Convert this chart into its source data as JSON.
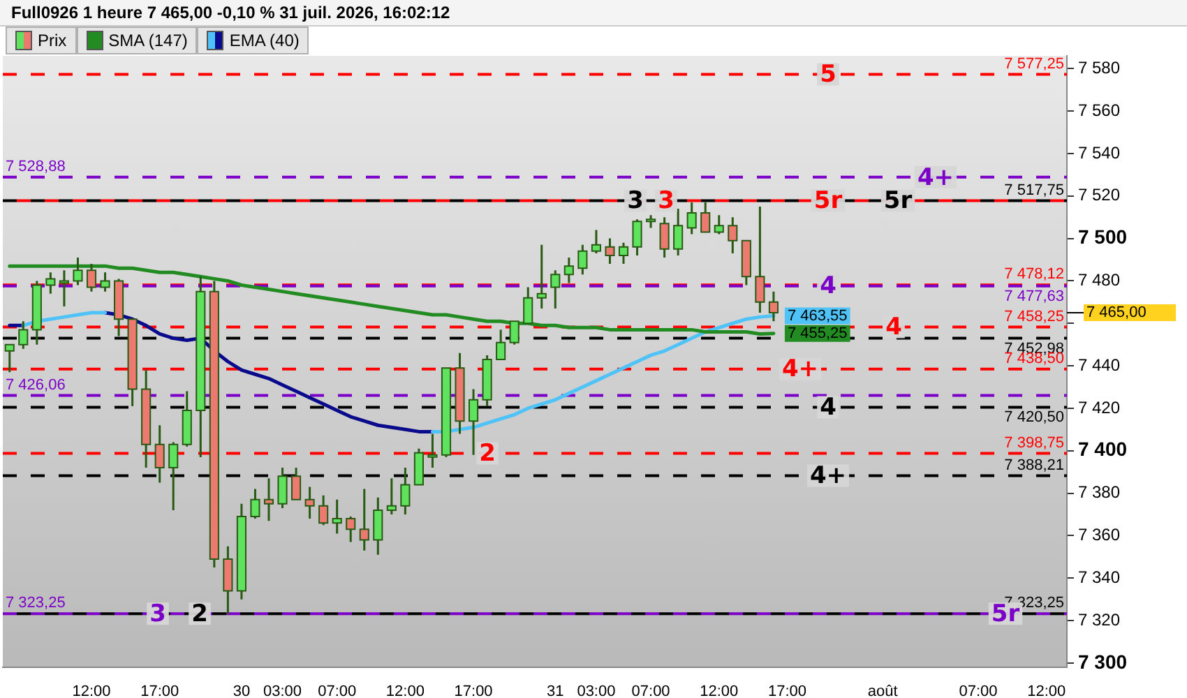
{
  "chart_data": {
    "type": "candlestick",
    "title": "Full0926 1 heure 7 465,00 -0,10 % 31 juil. 2026, 16:02:12",
    "categories": [
      null,
      null,
      null,
      null,
      null,
      null,
      "12:00",
      null,
      null,
      null,
      null,
      "17:00",
      null,
      null,
      null,
      null,
      null,
      "30",
      null,
      null,
      "03:00",
      null,
      null,
      null,
      "07:00",
      null,
      null,
      null,
      null,
      "12:00",
      null,
      null,
      null,
      null,
      "17:00",
      null,
      null,
      null,
      null,
      null,
      "31",
      null,
      null,
      "03:00",
      null,
      null,
      null,
      "07:00",
      null,
      null,
      null,
      null,
      "12:00",
      null,
      null,
      null,
      null,
      "17:00",
      null,
      null,
      null,
      null,
      null,
      null,
      "août",
      null,
      null,
      null,
      null,
      null,
      null,
      "07:00",
      null,
      null,
      null,
      null,
      "12:00",
      null
    ],
    "legend": "top left",
    "grid": false,
    "marker": "none",
    "line_style": "solid",
    "ylim": [
      7298,
      7586
    ],
    "yticks": [
      {
        "value": 7300,
        "label": "7 300"
      },
      {
        "value": 7320,
        "label": "7 320"
      },
      {
        "value": 7340,
        "label": "7 340"
      },
      {
        "value": 7360,
        "label": "7 360"
      },
      {
        "value": 7380,
        "label": "7 380"
      },
      {
        "value": 7400,
        "label": "7 400"
      },
      {
        "value": 7420,
        "label": "7 420"
      },
      {
        "value": 7440,
        "label": "7 440"
      },
      {
        "value": 7460,
        "label": null
      },
      {
        "value": 7480,
        "label": "7 480"
      },
      {
        "value": 7500,
        "label": "7 500"
      },
      {
        "value": 7520,
        "label": "7 520"
      },
      {
        "value": 7540,
        "label": "7 540"
      },
      {
        "value": 7560,
        "label": "7 560"
      },
      {
        "value": 7580,
        "label": "7 580"
      }
    ],
    "ref_lines": [
      {
        "axis": "y",
        "value": 7577.25,
        "label": "7 577,25",
        "color": "#ff0000",
        "line_style": "dashed"
      },
      {
        "axis": "y",
        "value": 7528.88,
        "label": "7 528,88",
        "color": "#7b00c8",
        "line_style": "dashed"
      },
      {
        "axis": "y",
        "value": 7517.75,
        "label": "7 517,75",
        "color": "#000000",
        "line_style": "dashed"
      },
      {
        "axis": "y",
        "value": 7517.75,
        "color": "#ff0000",
        "line_style": "dashed"
      },
      {
        "axis": "y",
        "value": 7478.12,
        "label": "7 478,12",
        "color": "#ff0000",
        "line_style": "dashed"
      },
      {
        "axis": "y",
        "value": 7477.63,
        "label": "7 477,63",
        "color": "#7b00c8",
        "line_style": "dashed"
      },
      {
        "axis": "y",
        "value": 7458.25,
        "label": "7 458,25",
        "color": "#ff0000",
        "line_style": "dashed"
      },
      {
        "axis": "y",
        "value": 7452.98,
        "label": "7 452,98",
        "color": "#000000",
        "line_style": "dashed"
      },
      {
        "axis": "y",
        "value": 7438.5,
        "label": "7 438,50",
        "color": "#ff0000",
        "line_style": "dashed"
      },
      {
        "axis": "y",
        "value": 7426.06,
        "label": "7 426,06",
        "color": "#7b00c8",
        "line_style": "dashed"
      },
      {
        "axis": "y",
        "value": 7420.5,
        "label": "7 420,50",
        "color": "#000000",
        "line_style": "dashed"
      },
      {
        "axis": "y",
        "value": 7398.75,
        "label": "7 398,75",
        "color": "#ff0000",
        "line_style": "dashed"
      },
      {
        "axis": "y",
        "value": 7388.21,
        "label": "7 388,21",
        "color": "#000000",
        "line_style": "dashed"
      },
      {
        "axis": "y",
        "value": 7323.25,
        "label": "7 323,25",
        "color": "#7b00c8",
        "line_style": "dashed"
      },
      {
        "axis": "y",
        "value": 7323.25,
        "label": "7 323,25",
        "color": "#000000",
        "line_style": "dashed"
      }
    ],
    "annotations": [
      {
        "text": "5",
        "y": 7577.25
      },
      {
        "text": "4+",
        "y": 7528.88
      },
      {
        "text": "3",
        "y": 7517.75
      },
      {
        "text": "3",
        "y": 7517.75
      },
      {
        "text": "5r",
        "y": 7517.75
      },
      {
        "text": "5r",
        "y": 7517.75
      },
      {
        "text": "4",
        "y": 7477.63
      },
      {
        "text": "4",
        "y": 7458.25
      },
      {
        "text": "4+",
        "y": 7438.5
      },
      {
        "text": "4",
        "y": 7420.5
      },
      {
        "text": "2",
        "y": 7398.75
      },
      {
        "text": "4+",
        "y": 7388.21
      },
      {
        "text": "3",
        "y": 7323.25
      },
      {
        "text": "2",
        "y": 7323.25
      },
      {
        "text": "5r",
        "y": 7323.25
      }
    ],
    "series": [
      {
        "name": "Prix",
        "ohlc": [
          [
            7447,
            7450,
            7437,
            7450
          ],
          [
            7450,
            7461,
            7448,
            7457
          ],
          [
            7457,
            7480,
            7450,
            7478
          ],
          [
            7478,
            7484,
            7474,
            7481
          ],
          [
            7480,
            7485,
            7468,
            7480
          ],
          [
            7480,
            7491,
            7478,
            7485
          ],
          [
            7485,
            7488,
            7475,
            7477
          ],
          [
            7477,
            7484,
            7475,
            7480
          ],
          [
            7480,
            7481,
            7454,
            7462
          ],
          [
            7462,
            7462,
            7421,
            7429
          ],
          [
            7429,
            7438,
            7392,
            7403
          ],
          [
            7403,
            7412,
            7385,
            7392
          ],
          [
            7392,
            7404,
            7372,
            7403
          ],
          [
            7403,
            7428,
            7402,
            7419
          ],
          [
            7419,
            7482,
            7397,
            7475
          ],
          [
            7475,
            7480,
            7345,
            7349
          ],
          [
            7349,
            7355,
            7323,
            7334
          ],
          [
            7334,
            7375,
            7330,
            7369
          ],
          [
            7369,
            7382,
            7368,
            7377
          ],
          [
            7377,
            7387,
            7367,
            7375
          ],
          [
            7375,
            7392,
            7373,
            7388
          ],
          [
            7388,
            7392,
            7377,
            7377
          ],
          [
            7377,
            7383,
            7368,
            7374
          ],
          [
            7374,
            7379,
            7365,
            7366
          ],
          [
            7366,
            7377,
            7361,
            7368
          ],
          [
            7368,
            7369,
            7357,
            7363
          ],
          [
            7363,
            7382,
            7353,
            7358
          ],
          [
            7358,
            7378,
            7351,
            7372
          ],
          [
            7372,
            7387,
            7370,
            7374
          ],
          [
            7374,
            7392,
            7370,
            7384
          ],
          [
            7384,
            7401,
            7384,
            7399
          ],
          [
            7398,
            7408,
            7392,
            7398
          ],
          [
            7398,
            7439,
            7397,
            7439
          ],
          [
            7439,
            7446,
            7408,
            7414
          ],
          [
            7414,
            7429,
            7398,
            7424
          ],
          [
            7424,
            7445,
            7421,
            7443
          ],
          [
            7443,
            7457,
            7443,
            7451
          ],
          [
            7451,
            7461,
            7450,
            7461
          ],
          [
            7460,
            7477,
            7460,
            7472
          ],
          [
            7472,
            7497,
            7467,
            7474
          ],
          [
            7477,
            7485,
            7467,
            7483
          ],
          [
            7483,
            7491,
            7479,
            7487
          ],
          [
            7486,
            7497,
            7483,
            7494
          ],
          [
            7494,
            7504,
            7493,
            7497
          ],
          [
            7496,
            7500,
            7488,
            7492
          ],
          [
            7492,
            7498,
            7488,
            7496
          ],
          [
            7496,
            7509,
            7492,
            7508
          ],
          [
            7509,
            7511,
            7505,
            7509
          ],
          [
            7507,
            7510,
            7491,
            7495
          ],
          [
            7495,
            7514,
            7492,
            7506
          ],
          [
            7505,
            7517,
            7502,
            7512
          ],
          [
            7512,
            7517,
            7503,
            7503
          ],
          [
            7503,
            7511,
            7502,
            7506
          ],
          [
            7506,
            7510,
            7493,
            7499
          ],
          [
            7499,
            7499,
            7478,
            7482
          ],
          [
            7482,
            7515,
            7465,
            7470
          ],
          [
            7470,
            7475,
            7461,
            7465
          ],
          null,
          null,
          null,
          null,
          null,
          null,
          null,
          null,
          null,
          null,
          null,
          null,
          null,
          null,
          null,
          null,
          null,
          null,
          null,
          null,
          null
        ],
        "colors": [
          "#5fe35f",
          "#5fe35f",
          "#5fe35f",
          "#5fe35f",
          "#5fe35f",
          "#5fe35f",
          "#ec7a70",
          "#5fe35f",
          "#ec7a70",
          "#ec7a70",
          "#ec7a70",
          "#ec7a70",
          "#5fe35f",
          "#5fe35f",
          "#5fe35f",
          "#ec7a70",
          "#ec7a70",
          "#5fe35f",
          "#5fe35f",
          "#ec7a70",
          "#5fe35f",
          "#ec7a70",
          "#ec7a70",
          "#ec7a70",
          "#5fe35f",
          "#ec7a70",
          "#ec7a70",
          "#5fe35f",
          "#5fe35f",
          "#5fe35f",
          "#5fe35f",
          "#5fe35f",
          "#5fe35f",
          "#ec7a70",
          "#5fe35f",
          "#5fe35f",
          "#5fe35f",
          "#5fe35f",
          "#5fe35f",
          "#5fe35f",
          "#5fe35f",
          "#5fe35f",
          "#5fe35f",
          "#5fe35f",
          "#ec7a70",
          "#5fe35f",
          "#5fe35f",
          "#5fe35f",
          "#ec7a70",
          "#5fe35f",
          "#5fe35f",
          "#ec7a70",
          "#5fe35f",
          "#ec7a70",
          "#ec7a70",
          "#ec7a70",
          "#ec7a70",
          null,
          null,
          null,
          null,
          null,
          null,
          null,
          null,
          null,
          null,
          null,
          null,
          null,
          null,
          null,
          null,
          null,
          null,
          null,
          null,
          null
        ],
        "value_labels": [
          null,
          null,
          null,
          null,
          null,
          null,
          null,
          null,
          null,
          null,
          null,
          null,
          null,
          null,
          null,
          null,
          null,
          null,
          null,
          null,
          null,
          null,
          null,
          null,
          null,
          null,
          null,
          null,
          null,
          null,
          null,
          null,
          null,
          null,
          null,
          null,
          null,
          null,
          null,
          null,
          null,
          null,
          null,
          null,
          null,
          null,
          null,
          null,
          null,
          null,
          null,
          null,
          null,
          null,
          null,
          null,
          "7 465,00",
          null,
          null,
          null,
          null,
          null,
          null,
          null,
          null,
          null,
          null,
          null,
          null,
          null,
          null,
          null,
          null,
          null,
          null,
          null,
          null,
          null
        ]
      },
      {
        "name": "SMA (147)",
        "type": "line",
        "color": "#228b22",
        "values": [
          7487,
          7487,
          7487,
          7487,
          7487,
          7487,
          7487,
          7487,
          7486,
          7486,
          7485,
          7484,
          7484,
          7483,
          7482,
          7481,
          7480,
          7478,
          7477,
          7476,
          7475,
          7474,
          7473,
          7472,
          7471,
          7470,
          7469,
          7468,
          7467,
          7466,
          7465,
          7464,
          7464,
          7463,
          7462,
          7461,
          7461,
          7460,
          7460,
          7459,
          7459,
          7458,
          7458,
          7458,
          7457,
          7457,
          7457,
          7457,
          7457,
          7457,
          7457,
          7456,
          7456,
          7456,
          7456,
          7455,
          7455.25,
          null,
          null,
          null,
          null,
          null,
          null,
          null,
          null,
          null,
          null,
          null,
          null,
          null,
          null,
          null,
          null,
          null,
          null,
          null,
          null,
          null
        ],
        "value_labels": [
          null,
          null,
          null,
          null,
          null,
          null,
          null,
          null,
          null,
          null,
          null,
          null,
          null,
          null,
          null,
          null,
          null,
          null,
          null,
          null,
          null,
          null,
          null,
          null,
          null,
          null,
          null,
          null,
          null,
          null,
          null,
          null,
          null,
          null,
          null,
          null,
          null,
          null,
          null,
          null,
          null,
          null,
          null,
          null,
          null,
          null,
          null,
          null,
          null,
          null,
          null,
          null,
          null,
          null,
          null,
          null,
          "7 455,25",
          null,
          null,
          null,
          null,
          null,
          null,
          null,
          null,
          null,
          null,
          null,
          null,
          null,
          null,
          null,
          null,
          null,
          null,
          null,
          null,
          null
        ]
      },
      {
        "name": "EMA (40)",
        "type": "line",
        "color": "#4fc3f7",
        "values": [
          null,
          7459,
          7461,
          7462,
          7463,
          7464,
          7465,
          7465,
          null,
          null,
          null,
          null,
          null,
          null,
          null,
          null,
          null,
          null,
          null,
          null,
          null,
          null,
          null,
          null,
          null,
          null,
          null,
          null,
          null,
          null,
          null,
          7409,
          7409,
          7410,
          7411,
          7413,
          7415,
          7417,
          7420,
          7422,
          7424,
          7427,
          7430,
          7433,
          7436,
          7439,
          7442,
          7445,
          7447,
          7450,
          7453,
          7456,
          7458,
          7460,
          7462,
          7463,
          7463.55,
          null,
          null,
          null,
          null,
          null,
          null,
          null,
          null,
          null,
          null,
          null,
          null,
          null,
          null,
          null,
          null,
          null,
          null,
          null,
          null,
          null
        ],
        "value_labels": [
          null,
          null,
          null,
          null,
          null,
          null,
          null,
          null,
          null,
          null,
          null,
          null,
          null,
          null,
          null,
          null,
          null,
          null,
          null,
          null,
          null,
          null,
          null,
          null,
          null,
          null,
          null,
          null,
          null,
          null,
          null,
          null,
          null,
          null,
          null,
          null,
          null,
          null,
          null,
          null,
          null,
          null,
          null,
          null,
          null,
          null,
          null,
          null,
          null,
          null,
          null,
          null,
          null,
          null,
          null,
          null,
          "7 463,55",
          null,
          null,
          null,
          null,
          null,
          null,
          null,
          null,
          null,
          null,
          null,
          null,
          null,
          null,
          null,
          null,
          null,
          null,
          null,
          null,
          null
        ]
      },
      {
        "type": "line",
        "color": "#0a0a8c",
        "values": [
          7459,
          7459,
          null,
          null,
          null,
          null,
          null,
          7465,
          7464,
          7462,
          7459,
          7455,
          7453,
          7452,
          7453,
          7447,
          7442,
          7438,
          7436,
          7434,
          7431,
          7428,
          7425,
          7422,
          7419,
          7416,
          7414,
          7412,
          7411,
          7410,
          7409,
          7409,
          null,
          null,
          null,
          null,
          null,
          null,
          null,
          null,
          null,
          null,
          null,
          null,
          null,
          null,
          null,
          null,
          null,
          null,
          null,
          null,
          null,
          null,
          null,
          null,
          null,
          null,
          null,
          null,
          null,
          null,
          null,
          null,
          null,
          null,
          null,
          null,
          null,
          null,
          null,
          null,
          null,
          null,
          null,
          null,
          null,
          null
        ]
      }
    ]
  }
}
